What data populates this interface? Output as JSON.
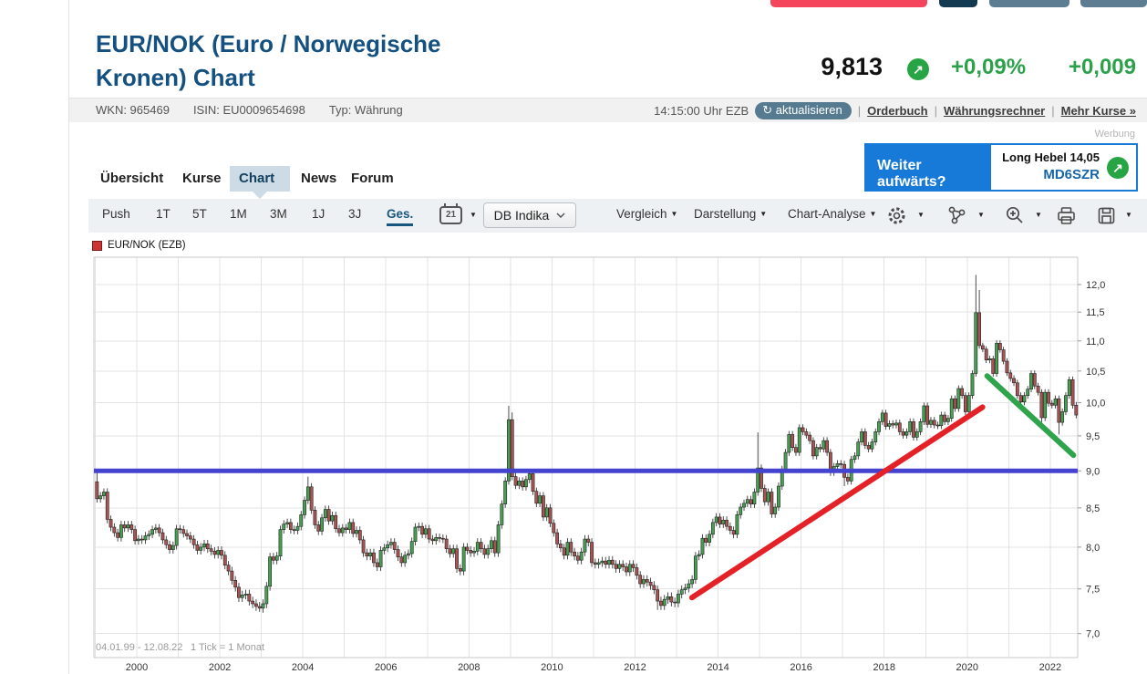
{
  "page": {
    "werbung_label": "Werbung"
  },
  "top_fragments": {
    "colors": [
      "#f4455c",
      "#133a50",
      "#5d7e92",
      "#5d7e92"
    ]
  },
  "header": {
    "title_line1": "EUR/NOK (Euro / Norwegische",
    "title_line2": "Kronen) Chart",
    "wkn": "WKN: 965469",
    "isin": "ISIN: EU0009654698",
    "typ": "Typ: Währung"
  },
  "quote": {
    "price": "9,813",
    "change_pct": "+0,09%",
    "change_abs": "+0,009",
    "up_arrow": "↗",
    "time": "14:15:00 Uhr EZB",
    "refresh_icon": "↻",
    "refresh_label": "aktualisieren",
    "links": {
      "orderbuch": "Orderbuch",
      "waehrungsrechner": "Währungsrechner",
      "mehr_kurse": "Mehr Kurse »"
    }
  },
  "ad": {
    "question": "Weiter aufwärts?",
    "product": "Long Hebel 14,05",
    "code": "MD6SZR",
    "arrow": "↗"
  },
  "tabs": {
    "items": [
      {
        "label": "Übersicht"
      },
      {
        "label": "Kurse"
      },
      {
        "label": "Chart"
      },
      {
        "label": "News"
      },
      {
        "label": "Forum"
      }
    ]
  },
  "toolbar": {
    "ranges": [
      {
        "label": "Push"
      },
      {
        "label": "1T"
      },
      {
        "label": "5T"
      },
      {
        "label": "1M"
      },
      {
        "label": "3M"
      },
      {
        "label": "1J"
      },
      {
        "label": "3J"
      },
      {
        "label": "Ges."
      }
    ],
    "calendar_day": "21",
    "indicator_label": "DB Indika",
    "menus": [
      {
        "label": "Vergleich"
      },
      {
        "label": "Darstellung"
      },
      {
        "label": "Chart-Analyse"
      }
    ]
  },
  "legend": {
    "series_label": "EUR/NOK (EZB)",
    "swatch_color": "#cc3333"
  },
  "chart_data": {
    "type": "candlestick",
    "title": "EUR/NOK (EZB)",
    "date_range": "04.01.99 - 12.08.22",
    "tick_note": "1 Tick = 1 Monat",
    "y_scale": "log",
    "ylim": [
      6.85,
      12.3
    ],
    "y_ticks": [
      7.0,
      7.5,
      8.0,
      8.5,
      9.0,
      9.5,
      10.0,
      10.5,
      11.0,
      11.5,
      12.0
    ],
    "x_tick_years": [
      2000,
      2002,
      2004,
      2006,
      2008,
      2010,
      2012,
      2014,
      2016,
      2018,
      2020,
      2022
    ],
    "x_start_year": 1999,
    "first_open": 8.85,
    "monthly_closes": [
      8.62,
      8.66,
      8.71,
      8.35,
      8.25,
      8.18,
      8.12,
      8.28,
      8.24,
      8.28,
      8.22,
      8.08,
      8.1,
      8.09,
      8.14,
      8.16,
      8.22,
      8.24,
      8.18,
      8.09,
      8.03,
      7.97,
      8.02,
      8.23,
      8.22,
      8.17,
      8.14,
      8.1,
      8.03,
      7.96,
      8.0,
      8.04,
      7.98,
      7.95,
      7.91,
      7.96,
      7.9,
      7.78,
      7.71,
      7.6,
      7.52,
      7.4,
      7.43,
      7.44,
      7.36,
      7.33,
      7.3,
      7.28,
      7.33,
      7.53,
      7.88,
      7.84,
      7.89,
      8.22,
      8.29,
      8.31,
      8.22,
      8.21,
      8.26,
      8.41,
      8.6,
      8.78,
      8.47,
      8.28,
      8.2,
      8.37,
      8.48,
      8.33,
      8.4,
      8.23,
      8.18,
      8.24,
      8.22,
      8.31,
      8.17,
      8.21,
      8.09,
      7.93,
      7.89,
      7.93,
      7.81,
      7.76,
      7.96,
      7.99,
      8.03,
      8.06,
      7.97,
      7.88,
      7.81,
      7.9,
      7.92,
      8.07,
      8.25,
      8.26,
      8.16,
      8.23,
      8.1,
      8.08,
      8.12,
      8.11,
      8.1,
      7.98,
      7.92,
      7.98,
      7.74,
      7.71,
      8.0,
      7.96,
      7.93,
      7.95,
      8.06,
      7.98,
      7.91,
      7.98,
      8.08,
      7.93,
      8.28,
      8.55,
      8.86,
      9.74,
      8.92,
      8.8,
      8.86,
      8.78,
      8.88,
      8.96,
      8.72,
      8.56,
      8.66,
      8.38,
      8.5,
      8.3,
      8.18,
      8.04,
      7.99,
      7.9,
      8.06,
      7.94,
      7.89,
      7.84,
      7.94,
      8.1,
      8.06,
      7.81,
      7.79,
      7.81,
      7.83,
      7.79,
      7.84,
      7.79,
      7.74,
      7.79,
      7.76,
      7.7,
      7.79,
      7.75,
      7.66,
      7.56,
      7.61,
      7.58,
      7.54,
      7.49,
      7.36,
      7.31,
      7.38,
      7.41,
      7.35,
      7.34,
      7.44,
      7.49,
      7.51,
      7.56,
      7.61,
      7.89,
      7.91,
      8.11,
      8.06,
      8.16,
      8.31,
      8.38,
      8.29,
      8.34,
      8.26,
      8.21,
      8.16,
      8.41,
      8.51,
      8.56,
      8.61,
      8.55,
      8.71,
      9.04,
      8.76,
      8.58,
      8.71,
      8.42,
      8.51,
      8.79,
      9.02,
      9.26,
      9.52,
      9.33,
      9.26,
      9.62,
      9.56,
      9.51,
      9.43,
      9.21,
      9.33,
      9.31,
      9.43,
      9.26,
      8.98,
      9.06,
      9.1,
      9.09,
      8.91,
      8.86,
      9.16,
      9.21,
      9.41,
      9.56,
      9.36,
      9.31,
      9.41,
      9.56,
      9.71,
      9.84,
      9.64,
      9.68,
      9.66,
      9.69,
      9.56,
      9.51,
      9.56,
      9.71,
      9.48,
      9.56,
      9.71,
      9.95,
      9.67,
      9.73,
      9.66,
      9.65,
      9.81,
      9.71,
      9.76,
      10.06,
      9.91,
      10.22,
      10.11,
      9.86,
      10.11,
      10.46,
      11.49,
      10.92,
      10.86,
      10.68,
      10.7,
      10.46,
      10.96,
      10.85,
      10.66,
      10.47,
      10.38,
      10.31,
      10.11,
      10.01,
      10.11,
      10.21,
      10.46,
      10.26,
      10.16,
      9.77,
      10.16,
      9.99,
      9.96,
      10.06,
      9.7,
      9.86,
      10.11,
      10.36,
      9.96,
      9.81
    ],
    "wick_overrides": {
      "0": {
        "h": 8.98
      },
      "47": {
        "l": 7.24
      },
      "61": {
        "h": 8.92
      },
      "119": {
        "h": 9.95
      },
      "120": {
        "h": 9.85
      },
      "162": {
        "l": 7.26
      },
      "191": {
        "h": 9.55
      },
      "216": {
        "l": 8.79
      },
      "254": {
        "h": 12.18
      },
      "255": {
        "h": 11.9
      },
      "273": {
        "l": 9.6
      },
      "278": {
        "l": 9.52
      }
    },
    "annotations": {
      "hline": {
        "y": 9.0
      },
      "trend_up": {
        "x1": 2013.37,
        "y1": 7.4,
        "x2": 2020.37,
        "y2": 9.93
      },
      "trend_down": {
        "x1": 2020.48,
        "y1": 10.42,
        "x2": 2022.56,
        "y2": 9.22
      }
    },
    "colors": {
      "up": "#46a052",
      "down": "#aa5353",
      "hline": "#4343cf",
      "trend_up": "#e42127",
      "trend_down": "#2fa44d",
      "grid": "#e3e3e3",
      "border": "#c8c8c8"
    }
  }
}
